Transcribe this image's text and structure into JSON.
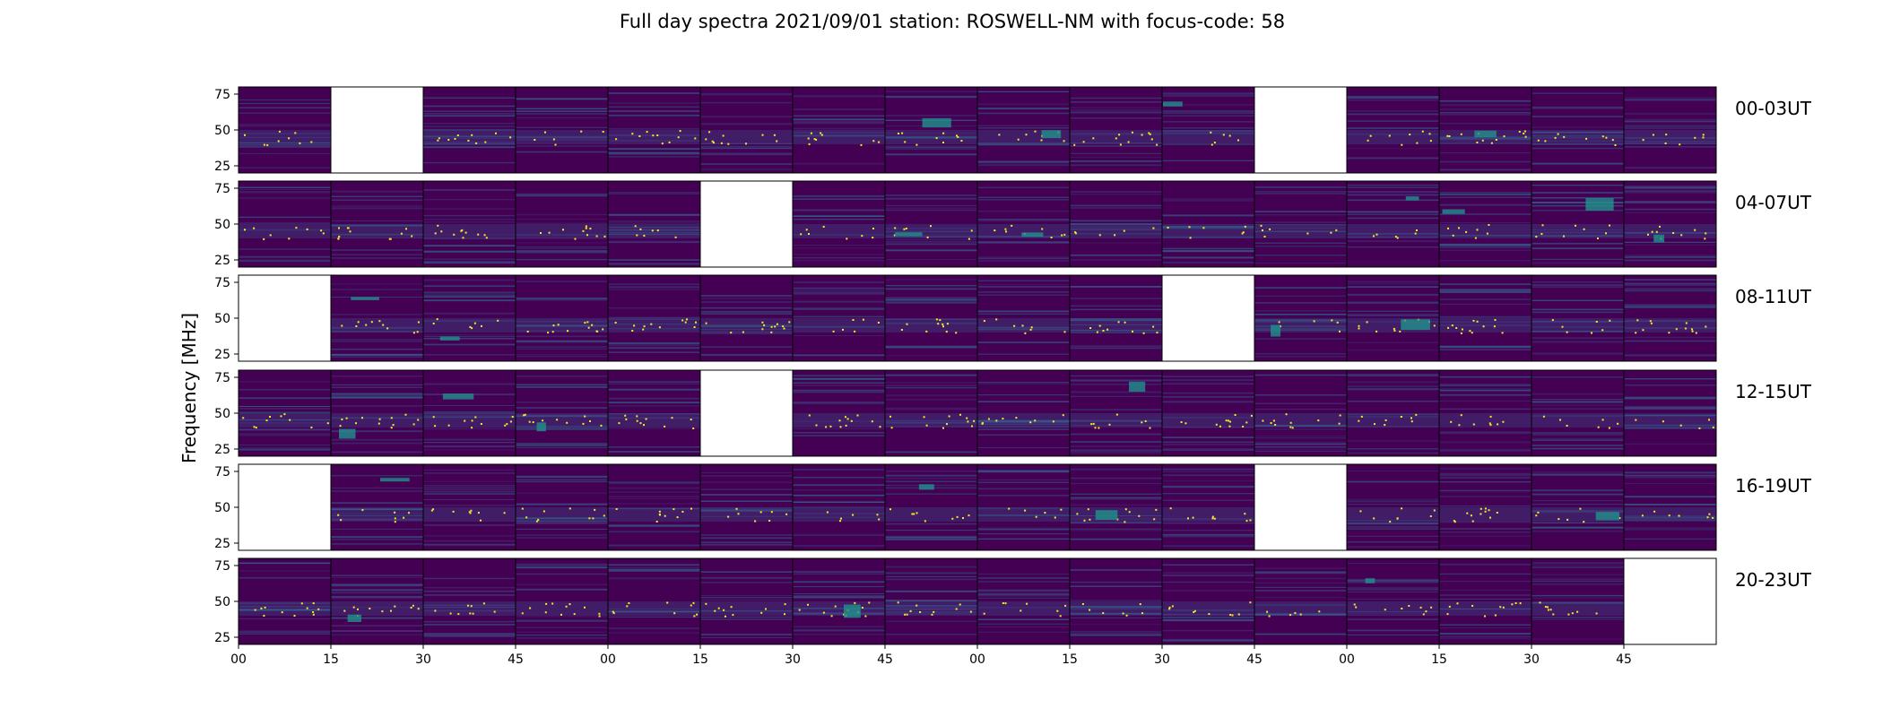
{
  "chart_data": {
    "type": "heatmap",
    "title": "Full day spectra 2021/09/01 station: ROSWELL-NM with focus-code: 58",
    "ylabel": "Frequency [MHz]",
    "xlabel": "",
    "colormap": "viridis",
    "ylim": [
      20,
      80
    ],
    "y_ticks": [
      "75",
      "50",
      "25"
    ],
    "x_ticks": [
      "00",
      "15",
      "30",
      "45",
      "00",
      "15",
      "30",
      "45",
      "00",
      "15",
      "30",
      "45",
      "00",
      "15",
      "30",
      "45"
    ],
    "panels_per_row": 16,
    "panel_minutes": 15,
    "rows": [
      {
        "label": "00-03UT",
        "missing": [
          1,
          11
        ]
      },
      {
        "label": "04-07UT",
        "missing": [
          5
        ]
      },
      {
        "label": "08-11UT",
        "missing": [
          0,
          10
        ]
      },
      {
        "label": "12-15UT",
        "missing": [
          5
        ]
      },
      {
        "label": "16-19UT",
        "missing": [
          0,
          11
        ]
      },
      {
        "label": "20-23UT",
        "missing": [
          15
        ]
      }
    ]
  },
  "colors": {
    "background": "#ffffff",
    "viridis_low": "#440154",
    "viridis_mid": "#3b528b",
    "viridis_teal": "#21918c",
    "viridis_high": "#fde725"
  }
}
